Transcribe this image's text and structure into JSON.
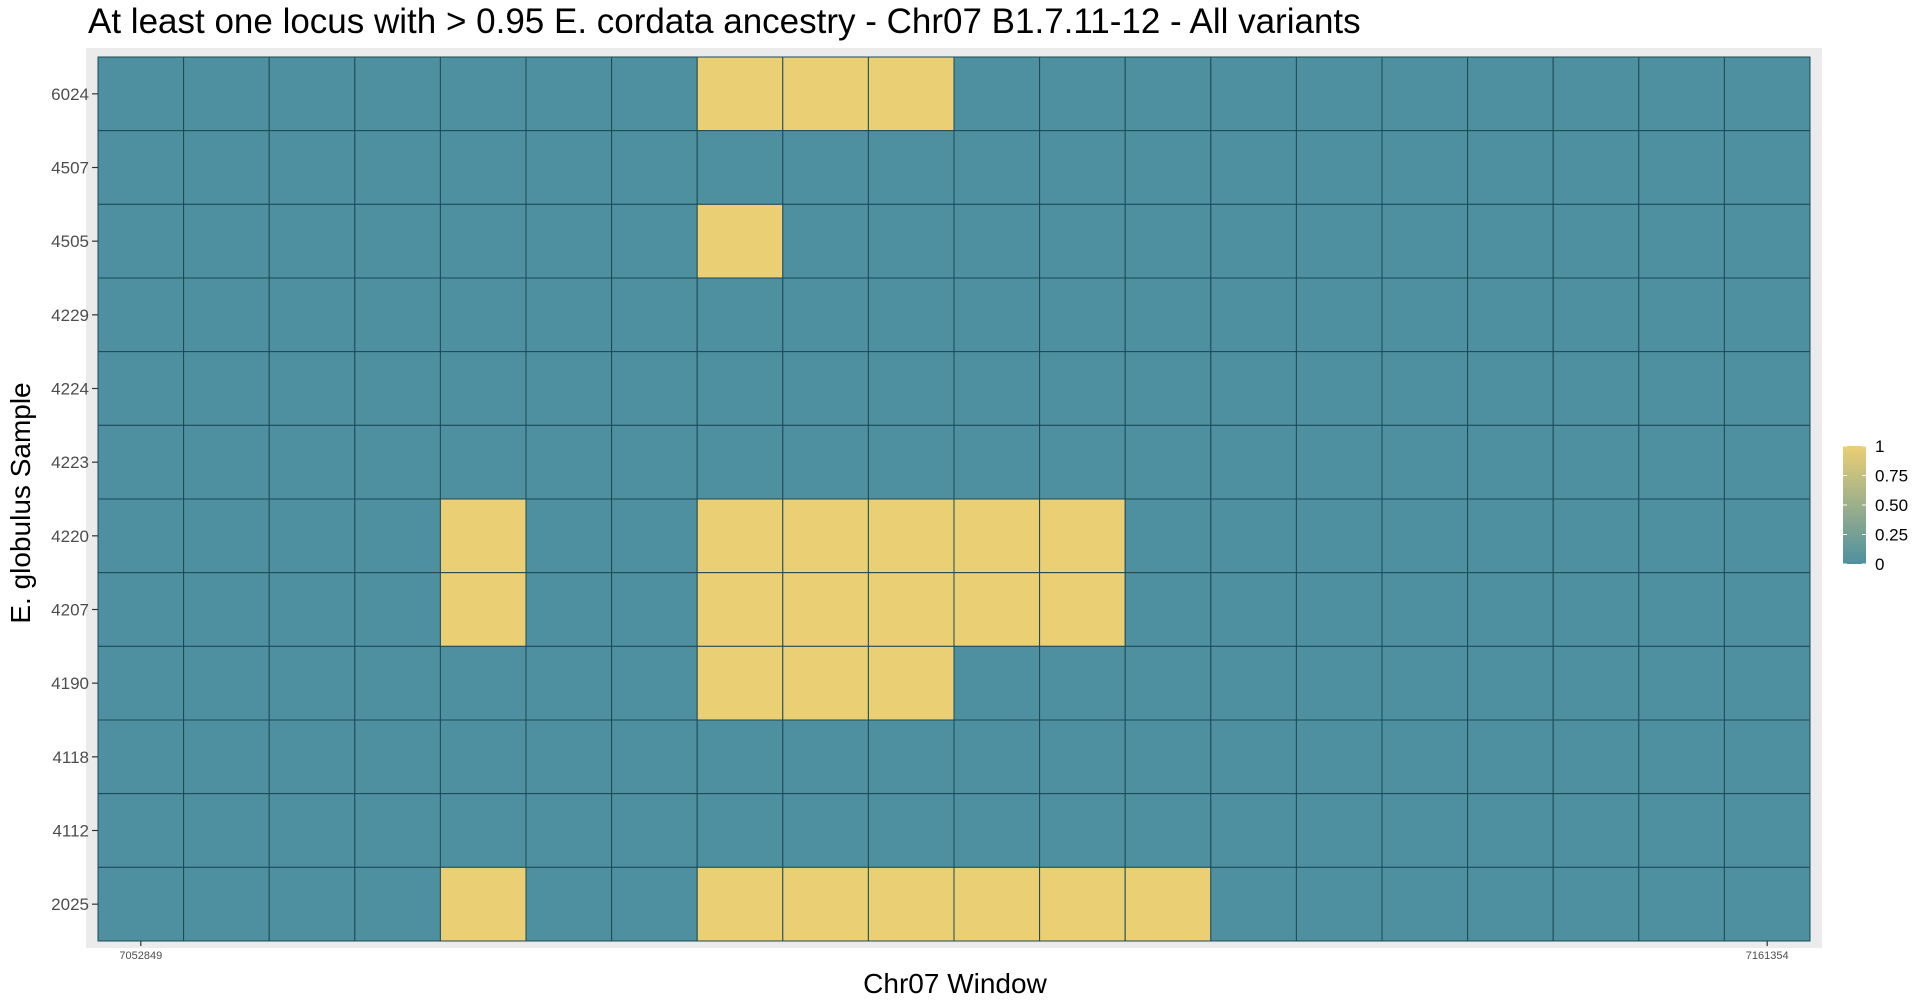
{
  "chart_data": {
    "type": "heatmap",
    "title": "At least one locus with > 0.95 E. cordata ancestry - Chr07 B1.7.11-12 - All variants",
    "xlabel": "Chr07 Window",
    "ylabel": "E. globulus Sample",
    "y_categories": [
      "6024",
      "4507",
      "4505",
      "4229",
      "4224",
      "4223",
      "4220",
      "4207",
      "4190",
      "4118",
      "4112",
      "2025"
    ],
    "x_tick_labels": [
      {
        "index": 0,
        "label": "7052849"
      },
      {
        "index": 19,
        "label": "7161354"
      }
    ],
    "n_windows": 20,
    "values": [
      [
        0,
        0,
        0,
        0,
        0,
        0,
        0,
        1,
        1,
        1,
        0,
        0,
        0,
        0,
        0,
        0,
        0,
        0,
        0,
        0
      ],
      [
        0,
        0,
        0,
        0,
        0,
        0,
        0,
        0,
        0,
        0,
        0,
        0,
        0,
        0,
        0,
        0,
        0,
        0,
        0,
        0
      ],
      [
        0,
        0,
        0,
        0,
        0,
        0,
        0,
        1,
        0,
        0,
        0,
        0,
        0,
        0,
        0,
        0,
        0,
        0,
        0,
        0
      ],
      [
        0,
        0,
        0,
        0,
        0,
        0,
        0,
        0,
        0,
        0,
        0,
        0,
        0,
        0,
        0,
        0,
        0,
        0,
        0,
        0
      ],
      [
        0,
        0,
        0,
        0,
        0,
        0,
        0,
        0,
        0,
        0,
        0,
        0,
        0,
        0,
        0,
        0,
        0,
        0,
        0,
        0
      ],
      [
        0,
        0,
        0,
        0,
        0,
        0,
        0,
        0,
        0,
        0,
        0,
        0,
        0,
        0,
        0,
        0,
        0,
        0,
        0,
        0
      ],
      [
        0,
        0,
        0,
        0,
        1,
        0,
        0,
        1,
        1,
        1,
        1,
        1,
        0,
        0,
        0,
        0,
        0,
        0,
        0,
        0
      ],
      [
        0,
        0,
        0,
        0,
        1,
        0,
        0,
        1,
        1,
        1,
        1,
        1,
        0,
        0,
        0,
        0,
        0,
        0,
        0,
        0
      ],
      [
        0,
        0,
        0,
        0,
        0,
        0,
        0,
        1,
        1,
        1,
        0,
        0,
        0,
        0,
        0,
        0,
        0,
        0,
        0,
        0
      ],
      [
        0,
        0,
        0,
        0,
        0,
        0,
        0,
        0,
        0,
        0,
        0,
        0,
        0,
        0,
        0,
        0,
        0,
        0,
        0,
        0
      ],
      [
        0,
        0,
        0,
        0,
        0,
        0,
        0,
        0,
        0,
        0,
        0,
        0,
        0,
        0,
        0,
        0,
        0,
        0,
        0,
        0
      ],
      [
        0,
        0,
        0,
        0,
        1,
        0,
        0,
        1,
        1,
        1,
        1,
        1,
        1,
        0,
        0,
        0,
        0,
        0,
        0,
        0
      ]
    ],
    "value_range": [
      0,
      1
    ],
    "legend": {
      "placement": "right",
      "labels": [
        "1",
        "0.75",
        "0.50",
        "0.25",
        "0"
      ],
      "values": [
        1,
        0.75,
        0.5,
        0.25,
        0
      ]
    },
    "colors": {
      "low": "#4e90a0",
      "mid_low": "#8aa69a",
      "mid_high": "#bcb88a",
      "high": "#ebcf74",
      "cell_border": "#1b4a55",
      "panel_background": "#ebebeb",
      "grid": "#ffffff"
    },
    "grid": true
  }
}
